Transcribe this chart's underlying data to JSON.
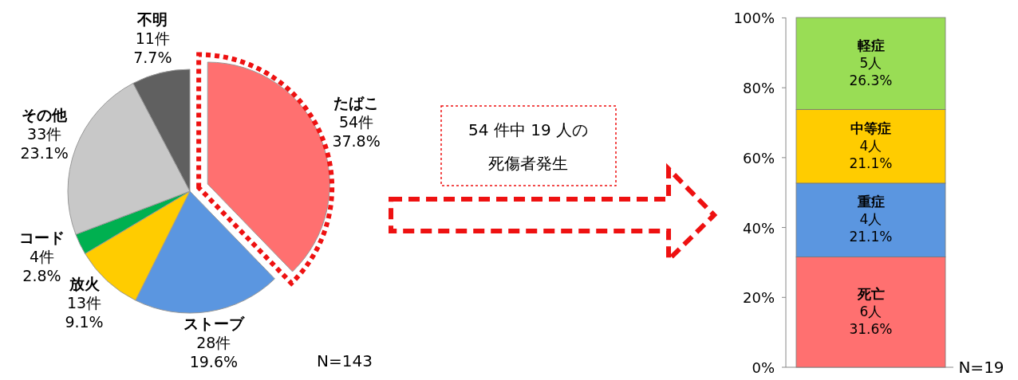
{
  "chart_data": [
    {
      "type": "pie",
      "categories": [
        "たばこ",
        "ストーブ",
        "放火",
        "コード",
        "その他",
        "不明"
      ],
      "values": [
        54,
        28,
        13,
        4,
        33,
        11
      ],
      "colors": [
        "#ff7070",
        "#5b96e0",
        "#ffcc00",
        "#00b050",
        "#c8c8c8",
        "#606060"
      ],
      "value_labels": [
        "54件\n37.8%",
        "28件\n19.6%",
        "13件\n9.1%",
        "4件\n2.8%",
        "33件\n23.1%",
        "11件\n7.7%"
      ],
      "annotations": [
        "N=143"
      ]
    },
    {
      "type": "other",
      "annotations": [
        "54 件中 19 人の",
        "死傷者発生"
      ]
    },
    {
      "type": "bar",
      "stacked": true,
      "categories": [
        null
      ],
      "tick_labels": "y",
      "grid": false,
      "series": [
        {
          "name": "死亡",
          "color": "#ff7070",
          "values": [
            31.6
          ],
          "value_labels": [
            "6人\n31.6%"
          ]
        },
        {
          "name": "重症",
          "color": "#5b96e0",
          "values": [
            21.1
          ],
          "value_labels": [
            "4人\n21.1%"
          ]
        },
        {
          "name": "中等症",
          "color": "#ffcc00",
          "values": [
            21.1
          ],
          "value_labels": [
            "4人\n21.1%"
          ]
        },
        {
          "name": "軽症",
          "color": "#99dd55",
          "values": [
            26.3
          ],
          "value_labels": [
            "5人\n26.3%"
          ]
        }
      ],
      "ylim": [
        0,
        100.1
      ],
      "yticks": [
        {
          "value": 0,
          "label": "0%"
        },
        {
          "value": 20,
          "label": "20%"
        },
        {
          "value": 40,
          "label": "40%"
        },
        {
          "value": 60,
          "label": "60%"
        },
        {
          "value": 80,
          "label": "80%"
        },
        {
          "value": 100,
          "label": "100%"
        }
      ],
      "annotations": [
        "N=19"
      ]
    }
  ]
}
